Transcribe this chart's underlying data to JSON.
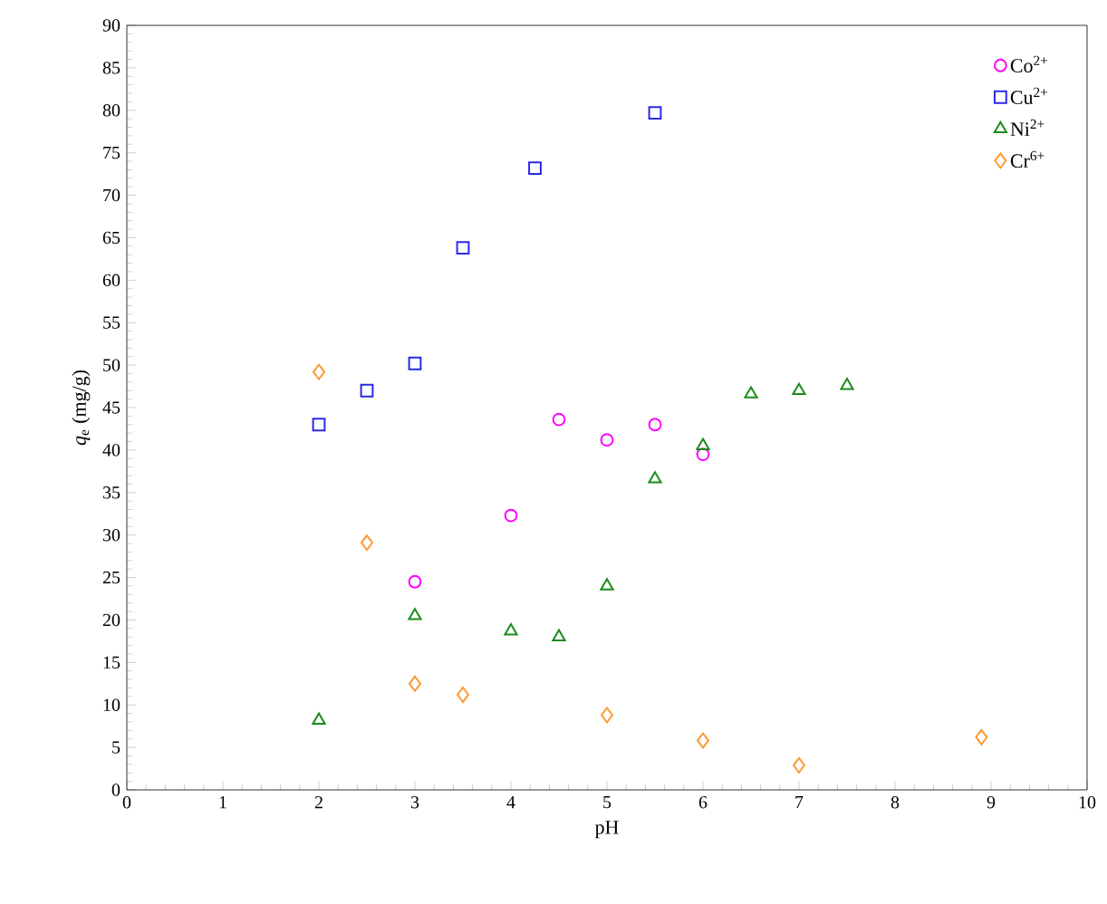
{
  "chart_data": {
    "type": "scatter",
    "xlabel": "pH",
    "ylabel": "*q*$_{e}$ (mg/g)",
    "xlim": [
      0,
      10
    ],
    "xticks": [
      0,
      1,
      2,
      3,
      4,
      5,
      6,
      7,
      8,
      9,
      10
    ],
    "ylim": [
      0,
      90
    ],
    "yticks": [
      0,
      5,
      10,
      15,
      20,
      25,
      30,
      35,
      40,
      45,
      50,
      55,
      60,
      65,
      70,
      75,
      80,
      85,
      90
    ],
    "grid": false,
    "legend": "top right",
    "series": [
      {
        "name": "Co$^{2+}$",
        "color": "#ff00ff",
        "marker": "circle",
        "x": [
          3,
          4,
          4.5,
          5,
          5.5,
          6
        ],
        "values": [
          24.5,
          32.3,
          43.6,
          41.2,
          43.0,
          39.5
        ]
      },
      {
        "name": "Cu$^{2+}$",
        "color": "#2a2ae6",
        "marker": "square",
        "x": [
          2,
          2.5,
          3,
          3.5,
          4.25,
          5.5
        ],
        "values": [
          43.0,
          47.0,
          50.2,
          63.8,
          73.2,
          79.7
        ]
      },
      {
        "name": "Ni$^{2+}$",
        "color": "#1a8c1a",
        "marker": "triangle",
        "x": [
          2,
          3,
          4,
          4.5,
          5,
          5.5,
          6,
          6.5,
          7,
          7.5
        ],
        "values": [
          8.2,
          20.5,
          18.7,
          18.0,
          24.0,
          36.6,
          40.5,
          46.6,
          47.0,
          47.6
        ]
      },
      {
        "name": "Cr$^{6+}$",
        "color": "#ff9933",
        "marker": "diamond",
        "x": [
          2,
          2.5,
          3,
          3.5,
          5,
          6,
          7,
          8.9
        ],
        "values": [
          49.2,
          29.1,
          12.5,
          11.2,
          8.8,
          5.8,
          2.9,
          6.2
        ]
      }
    ]
  }
}
